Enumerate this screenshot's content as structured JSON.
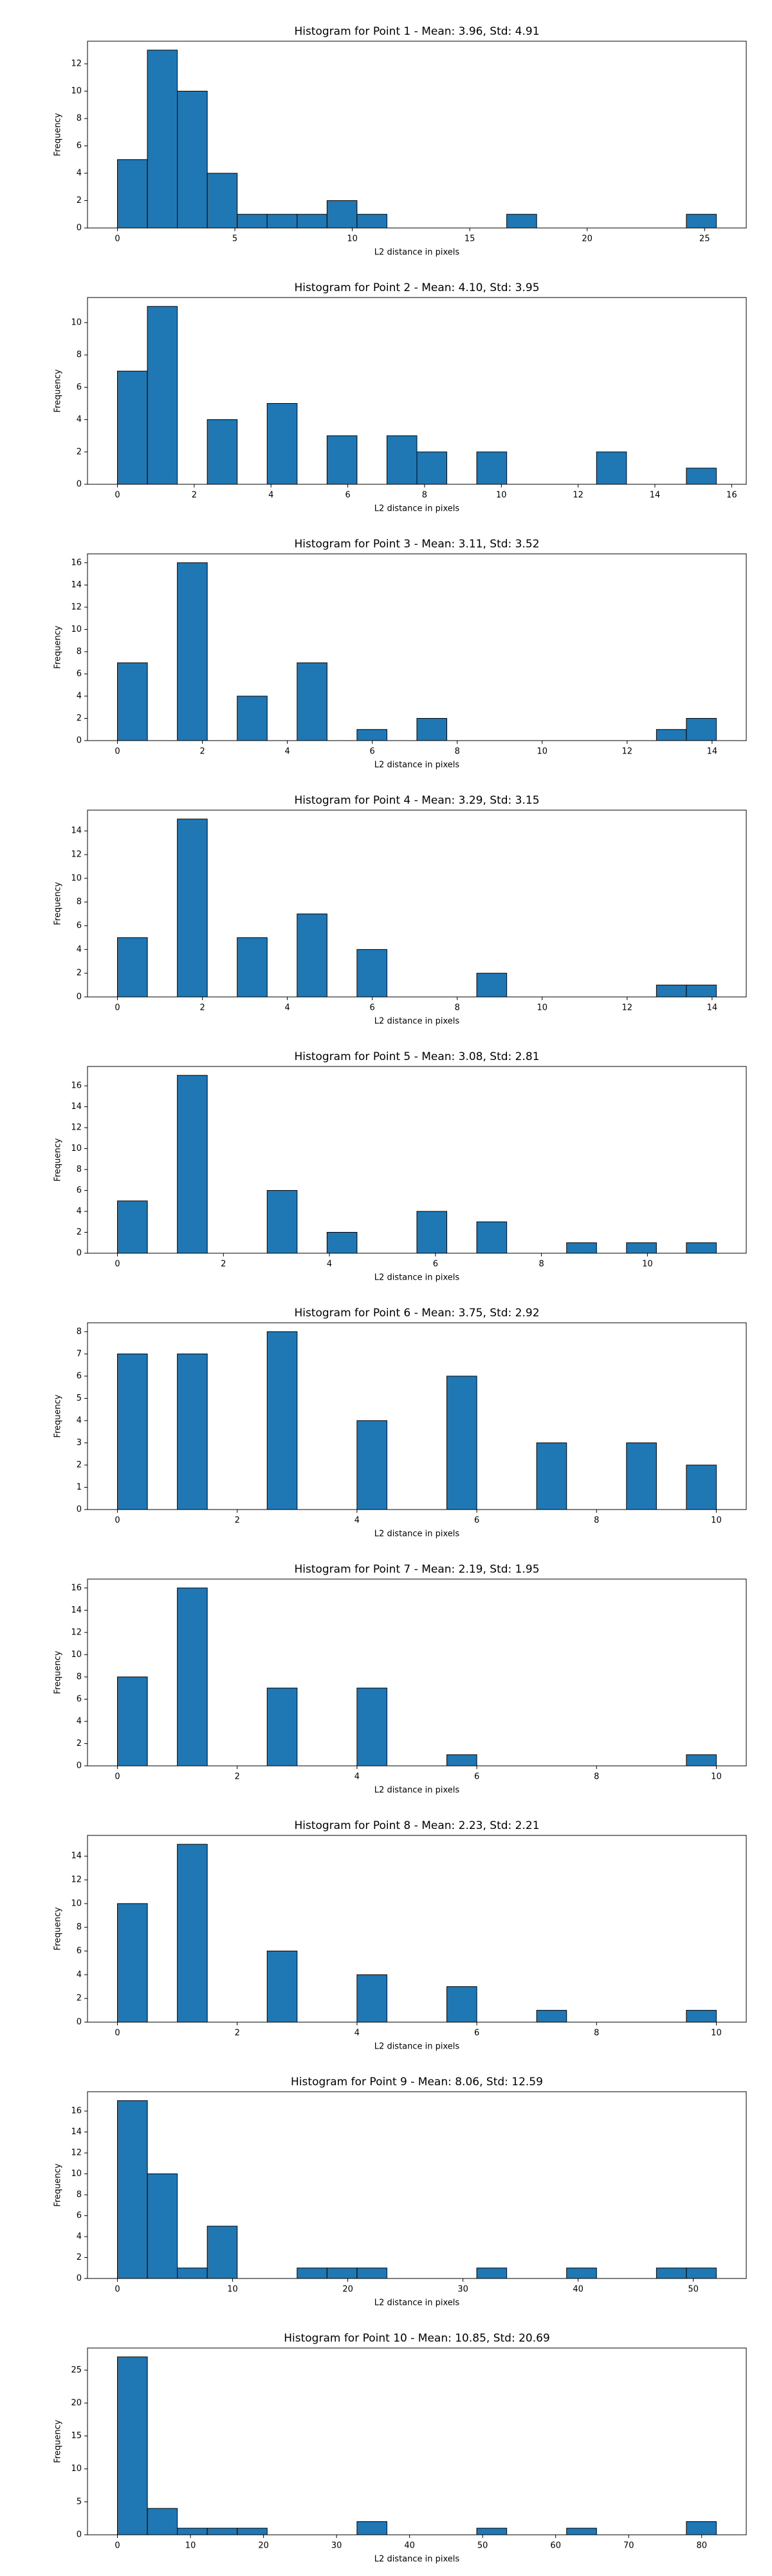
{
  "chart_data": [
    {
      "type": "histogram",
      "title": "Histogram for Point 1 - Mean: 3.96, Std: 4.91",
      "xlabel": "L2 distance in pixels",
      "ylabel": "Frequency",
      "color": "#1f77b4",
      "edgecolor": "#000000",
      "bins": [
        0,
        1.275,
        2.55,
        3.825,
        5.1,
        6.375,
        7.65,
        8.925,
        10.2,
        11.475,
        12.75,
        14.025,
        15.3,
        16.575,
        17.85,
        19.125,
        20.4,
        21.675,
        22.95,
        24.225,
        25.5
      ],
      "counts": [
        5,
        13,
        10,
        4,
        1,
        1,
        1,
        2,
        1,
        0,
        0,
        0,
        0,
        1,
        0,
        0,
        0,
        0,
        0,
        1
      ],
      "xlim": [
        -1.275,
        26.775
      ],
      "ylim": [
        0,
        13.65
      ],
      "xticks": [
        0,
        5,
        10,
        15,
        20,
        25
      ],
      "yticks": [
        0,
        2,
        4,
        6,
        8,
        10,
        12
      ]
    },
    {
      "type": "histogram",
      "title": "Histogram for Point 2 - Mean: 4.10, Std: 3.95",
      "xlabel": "L2 distance in pixels",
      "ylabel": "Frequency",
      "color": "#1f77b4",
      "edgecolor": "#000000",
      "bins": [
        0,
        0.78,
        1.56,
        2.34,
        3.12,
        3.9,
        4.68,
        5.46,
        6.24,
        7.02,
        7.8,
        8.58,
        9.36,
        10.14,
        10.92,
        11.7,
        12.48,
        13.26,
        14.04,
        14.82,
        15.6
      ],
      "counts": [
        7,
        11,
        0,
        4,
        0,
        5,
        0,
        3,
        0,
        3,
        2,
        0,
        2,
        0,
        0,
        0,
        2,
        0,
        0,
        1
      ],
      "xlim": [
        -0.78,
        16.38
      ],
      "ylim": [
        0,
        11.55
      ],
      "xticks": [
        0,
        2,
        4,
        6,
        8,
        10,
        12,
        14,
        16
      ],
      "yticks": [
        0,
        2,
        4,
        6,
        8,
        10
      ]
    },
    {
      "type": "histogram",
      "title": "Histogram for Point 3 - Mean: 3.11, Std: 3.52",
      "xlabel": "L2 distance in pixels",
      "ylabel": "Frequency",
      "color": "#1f77b4",
      "edgecolor": "#000000",
      "bins": [
        0,
        0.705,
        1.41,
        2.115,
        2.82,
        3.525,
        4.23,
        4.935,
        5.64,
        6.345,
        7.05,
        7.755,
        8.46,
        9.165,
        9.87,
        10.575,
        11.28,
        11.985,
        12.69,
        13.395,
        14.1
      ],
      "counts": [
        7,
        0,
        16,
        0,
        4,
        0,
        7,
        0,
        1,
        0,
        2,
        0,
        0,
        0,
        0,
        0,
        0,
        0,
        1,
        2
      ],
      "xlim": [
        -0.705,
        14.805
      ],
      "ylim": [
        0,
        16.8
      ],
      "xticks": [
        0,
        2,
        4,
        6,
        8,
        10,
        12,
        14
      ],
      "yticks": [
        0,
        2,
        4,
        6,
        8,
        10,
        12,
        14,
        16
      ]
    },
    {
      "type": "histogram",
      "title": "Histogram for Point 4 - Mean: 3.29, Std: 3.15",
      "xlabel": "L2 distance in pixels",
      "ylabel": "Frequency",
      "color": "#1f77b4",
      "edgecolor": "#000000",
      "bins": [
        0,
        0.705,
        1.41,
        2.115,
        2.82,
        3.525,
        4.23,
        4.935,
        5.64,
        6.345,
        7.05,
        7.755,
        8.46,
        9.165,
        9.87,
        10.575,
        11.28,
        11.985,
        12.69,
        13.395,
        14.1
      ],
      "counts": [
        5,
        0,
        15,
        0,
        5,
        0,
        7,
        0,
        4,
        0,
        0,
        0,
        2,
        0,
        0,
        0,
        0,
        0,
        1,
        1
      ],
      "xlim": [
        -0.705,
        14.805
      ],
      "ylim": [
        0,
        15.75
      ],
      "xticks": [
        0,
        2,
        4,
        6,
        8,
        10,
        12,
        14
      ],
      "yticks": [
        0,
        2,
        4,
        6,
        8,
        10,
        12,
        14
      ]
    },
    {
      "type": "histogram",
      "title": "Histogram for Point 5 - Mean: 3.08, Std: 2.81",
      "xlabel": "L2 distance in pixels",
      "ylabel": "Frequency",
      "color": "#1f77b4",
      "edgecolor": "#000000",
      "bins": [
        0,
        0.565,
        1.13,
        1.695,
        2.26,
        2.825,
        3.39,
        3.955,
        4.52,
        5.085,
        5.65,
        6.215,
        6.78,
        7.345,
        7.91,
        8.475,
        9.04,
        9.605,
        10.17,
        10.735,
        11.3
      ],
      "counts": [
        5,
        0,
        17,
        0,
        0,
        6,
        0,
        2,
        0,
        0,
        4,
        0,
        3,
        0,
        0,
        1,
        0,
        1,
        0,
        1
      ],
      "xlim": [
        -0.565,
        11.865
      ],
      "ylim": [
        0,
        17.85
      ],
      "xticks": [
        0,
        2,
        4,
        6,
        8,
        10
      ],
      "yticks": [
        0,
        2,
        4,
        6,
        8,
        10,
        12,
        14,
        16
      ]
    },
    {
      "type": "histogram",
      "title": "Histogram for Point 6 - Mean: 3.75, Std: 2.92",
      "xlabel": "L2 distance in pixels",
      "ylabel": "Frequency",
      "color": "#1f77b4",
      "edgecolor": "#000000",
      "bins": [
        0,
        0.5,
        1,
        1.5,
        2,
        2.5,
        3,
        3.5,
        4,
        4.5,
        5,
        5.5,
        6,
        6.5,
        7,
        7.5,
        8,
        8.5,
        9,
        9.5,
        10
      ],
      "counts": [
        7,
        0,
        7,
        0,
        0,
        8,
        0,
        0,
        4,
        0,
        0,
        6,
        0,
        0,
        3,
        0,
        0,
        3,
        0,
        2
      ],
      "xlim": [
        -0.5,
        10.5
      ],
      "ylim": [
        0,
        8.4
      ],
      "xticks": [
        0,
        2,
        4,
        6,
        8,
        10
      ],
      "yticks": [
        0,
        1,
        2,
        3,
        4,
        5,
        6,
        7,
        8
      ]
    },
    {
      "type": "histogram",
      "title": "Histogram for Point 7 - Mean: 2.19, Std: 1.95",
      "xlabel": "L2 distance in pixels",
      "ylabel": "Frequency",
      "color": "#1f77b4",
      "edgecolor": "#000000",
      "bins": [
        0,
        0.5,
        1,
        1.5,
        2,
        2.5,
        3,
        3.5,
        4,
        4.5,
        5,
        5.5,
        6,
        6.5,
        7,
        7.5,
        8,
        8.5,
        9,
        9.5,
        10
      ],
      "counts": [
        8,
        0,
        16,
        0,
        0,
        7,
        0,
        0,
        7,
        0,
        0,
        1,
        0,
        0,
        0,
        0,
        0,
        0,
        0,
        1
      ],
      "xlim": [
        -0.5,
        10.5
      ],
      "ylim": [
        0,
        16.8
      ],
      "xticks": [
        0,
        2,
        4,
        6,
        8,
        10
      ],
      "yticks": [
        0,
        2,
        4,
        6,
        8,
        10,
        12,
        14,
        16
      ]
    },
    {
      "type": "histogram",
      "title": "Histogram for Point 8 - Mean: 2.23, Std: 2.21",
      "xlabel": "L2 distance in pixels",
      "ylabel": "Frequency",
      "color": "#1f77b4",
      "edgecolor": "#000000",
      "bins": [
        0,
        0.5,
        1,
        1.5,
        2,
        2.5,
        3,
        3.5,
        4,
        4.5,
        5,
        5.5,
        6,
        6.5,
        7,
        7.5,
        8,
        8.5,
        9,
        9.5,
        10
      ],
      "counts": [
        10,
        0,
        15,
        0,
        0,
        6,
        0,
        0,
        4,
        0,
        0,
        3,
        0,
        0,
        1,
        0,
        0,
        0,
        0,
        1
      ],
      "xlim": [
        -0.5,
        10.5
      ],
      "ylim": [
        0,
        15.75
      ],
      "xticks": [
        0,
        2,
        4,
        6,
        8,
        10
      ],
      "yticks": [
        0,
        2,
        4,
        6,
        8,
        10,
        12,
        14
      ]
    },
    {
      "type": "histogram",
      "title": "Histogram for Point 9 - Mean: 8.06, Std: 12.59",
      "xlabel": "L2 distance in pixels",
      "ylabel": "Frequency",
      "color": "#1f77b4",
      "edgecolor": "#000000",
      "bins": [
        0,
        2.6,
        5.2,
        7.8,
        10.4,
        13,
        15.6,
        18.2,
        20.8,
        23.4,
        26,
        28.6,
        31.2,
        33.8,
        36.4,
        39,
        41.6,
        44.2,
        46.8,
        49.4,
        52
      ],
      "counts": [
        17,
        10,
        1,
        5,
        0,
        0,
        1,
        1,
        1,
        0,
        0,
        0,
        1,
        0,
        0,
        1,
        0,
        0,
        1,
        1
      ],
      "xlim": [
        -2.6,
        54.6
      ],
      "ylim": [
        0,
        17.85
      ],
      "xticks": [
        0,
        10,
        20,
        30,
        40,
        50
      ],
      "yticks": [
        0,
        2,
        4,
        6,
        8,
        10,
        12,
        14,
        16
      ]
    },
    {
      "type": "histogram",
      "title": "Histogram for Point 10 - Mean: 10.85, Std: 20.69",
      "xlabel": "L2 distance in pixels",
      "ylabel": "Frequency",
      "color": "#1f77b4",
      "edgecolor": "#000000",
      "bins": [
        0,
        4.1,
        8.2,
        12.3,
        16.4,
        20.5,
        24.6,
        28.7,
        32.8,
        36.9,
        41,
        45.1,
        49.2,
        53.3,
        57.4,
        61.5,
        65.6,
        69.7,
        73.8,
        77.9,
        82
      ],
      "counts": [
        27,
        4,
        1,
        1,
        1,
        0,
        0,
        0,
        2,
        0,
        0,
        0,
        1,
        0,
        0,
        1,
        0,
        0,
        0,
        2
      ],
      "xlim": [
        -4.1,
        86.1
      ],
      "ylim": [
        0,
        28.35
      ],
      "xticks": [
        0,
        10,
        20,
        30,
        40,
        50,
        60,
        70,
        80
      ],
      "yticks": [
        0,
        5,
        10,
        15,
        20,
        25
      ]
    }
  ]
}
